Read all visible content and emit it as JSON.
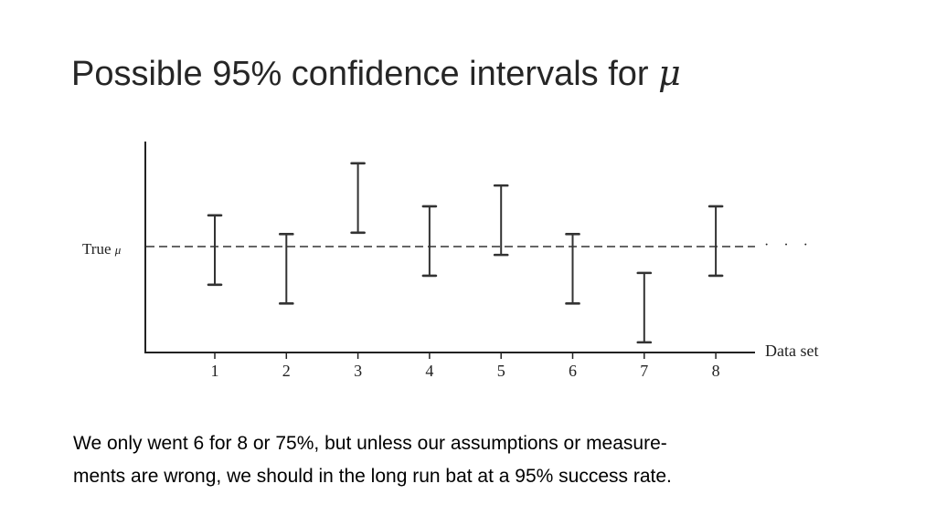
{
  "slide": {
    "title": "Possible 95% confidence intervals for",
    "title_symbol": "μ",
    "caption_line1": "We only went 6 for 8 or 75%, but unless our assumptions or measure-",
    "caption_line2": "ments are wrong, we should in the long run bat at a 95% success rate."
  },
  "chart_data": {
    "type": "interval",
    "categories": [
      "1",
      "2",
      "3",
      "4",
      "5",
      "6",
      "7",
      "8"
    ],
    "intervals": [
      {
        "low": -0.55,
        "high": 0.45
      },
      {
        "low": -0.82,
        "high": 0.18
      },
      {
        "low": 0.2,
        "high": 1.2
      },
      {
        "low": -0.42,
        "high": 0.58
      },
      {
        "low": -0.12,
        "high": 0.88
      },
      {
        "low": -0.82,
        "high": 0.18
      },
      {
        "low": -1.38,
        "high": -0.38
      },
      {
        "low": -0.42,
        "high": 0.58
      }
    ],
    "reference_line": {
      "label": "True",
      "symbol": "μ",
      "value": 0,
      "style": "dashed"
    },
    "xlabel": "Data set",
    "ylabel": "",
    "ylim": [
      -1.5,
      1.5
    ],
    "grid": false,
    "colors": {
      "marks": "#333333",
      "axis": "#222222"
    }
  }
}
